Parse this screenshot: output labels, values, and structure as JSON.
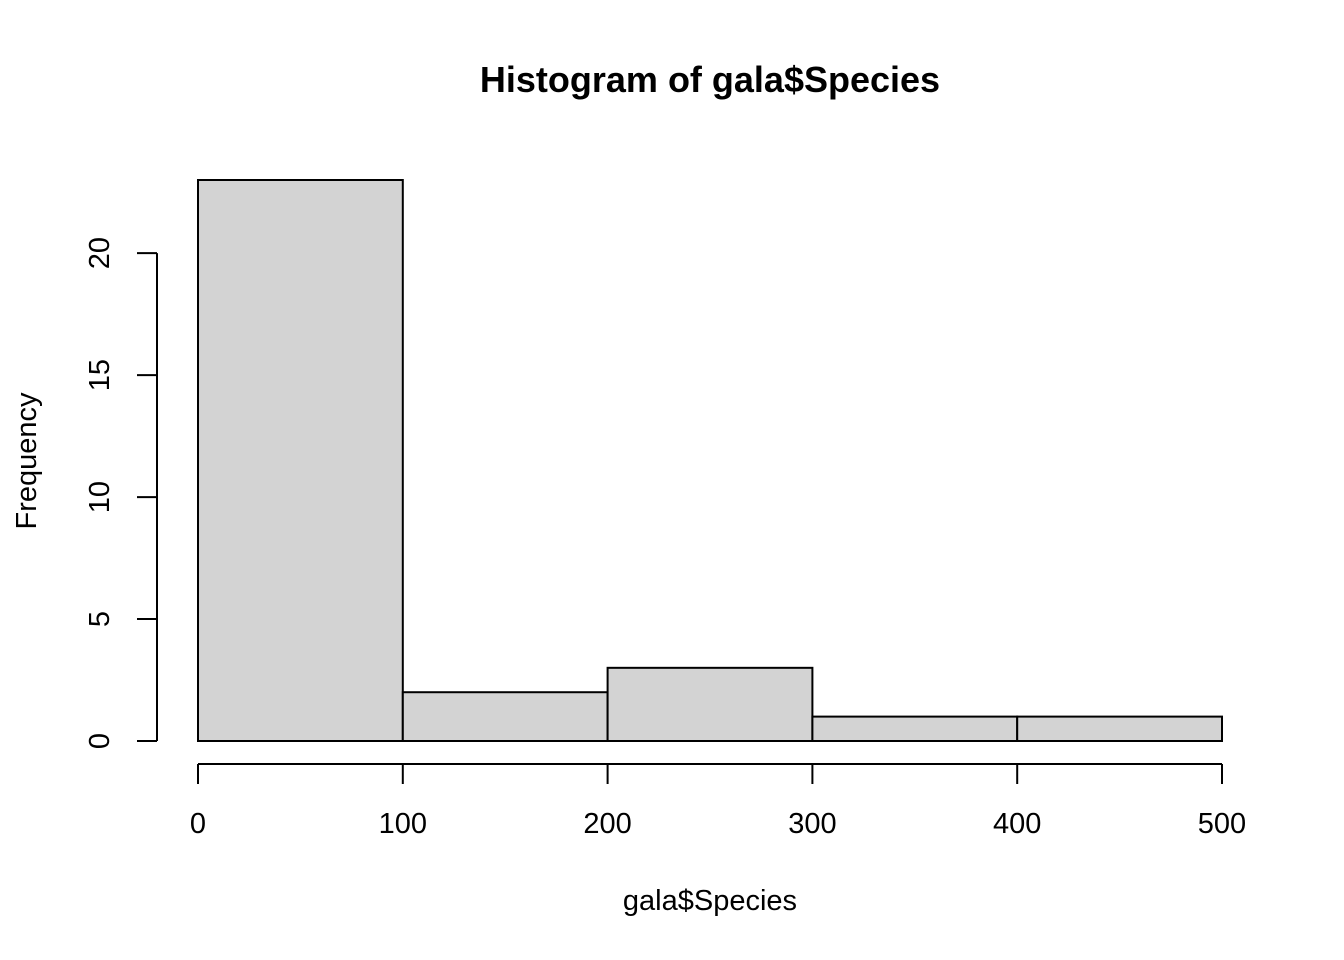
{
  "chart_data": {
    "type": "bar",
    "title": "Histogram of gala$Species",
    "xlabel": "gala$Species",
    "ylabel": "Frequency",
    "bins": [
      {
        "start": 0,
        "end": 100,
        "count": 23
      },
      {
        "start": 100,
        "end": 200,
        "count": 2
      },
      {
        "start": 200,
        "end": 300,
        "count": 3
      },
      {
        "start": 300,
        "end": 400,
        "count": 1
      },
      {
        "start": 400,
        "end": 500,
        "count": 1
      }
    ],
    "x_ticks": [
      0,
      100,
      200,
      300,
      400,
      500
    ],
    "y_ticks": [
      0,
      5,
      10,
      15,
      20
    ],
    "xlim": [
      0,
      500
    ],
    "ylim": [
      0,
      23
    ],
    "grid": false,
    "colors": {
      "bar_fill": "#d3d3d3",
      "bar_stroke": "#000000"
    }
  }
}
